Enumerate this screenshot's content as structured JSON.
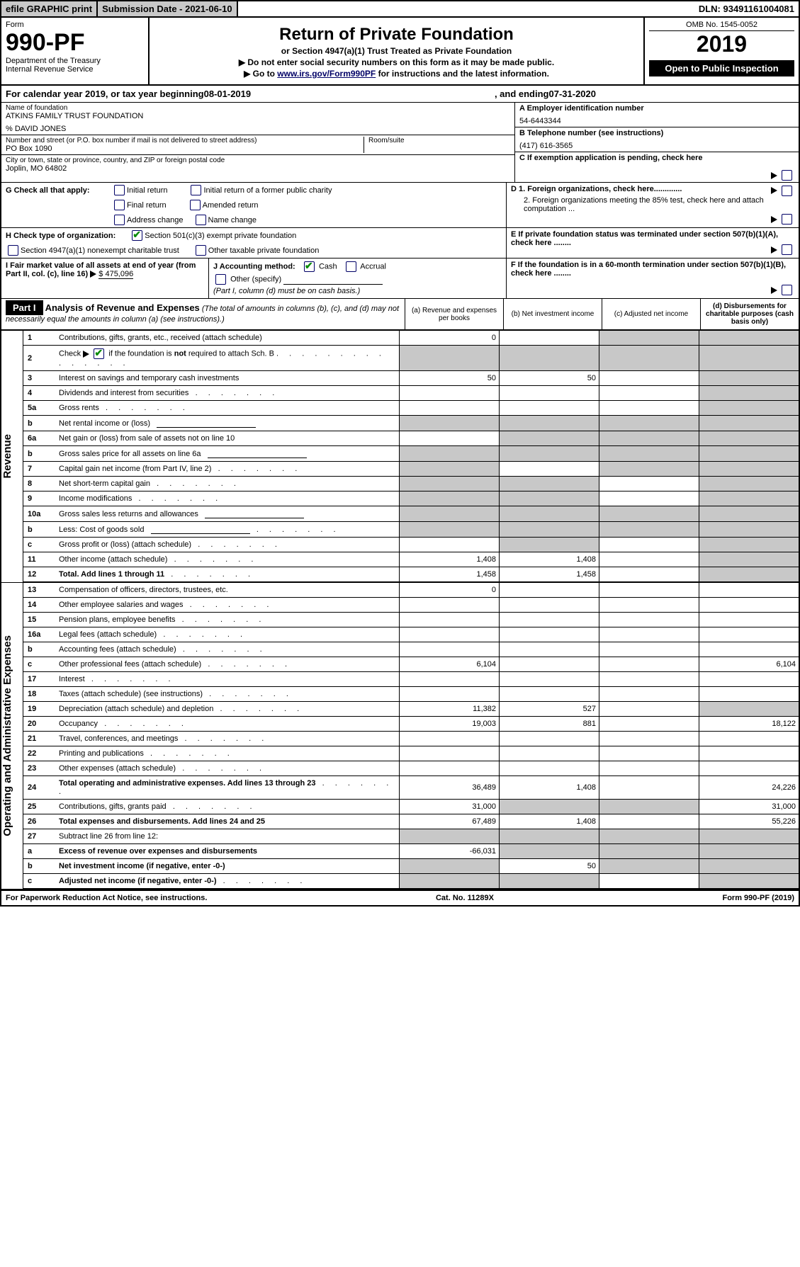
{
  "topbar": {
    "print": "efile GRAPHIC print",
    "submission": "Submission Date - 2021-06-10",
    "dln": "DLN: 93491161004081"
  },
  "header": {
    "form_label": "Form",
    "form_num": "990-PF",
    "dept": "Department of the Treasury",
    "irs": "Internal Revenue Service",
    "title": "Return of Private Foundation",
    "subtitle": "or Section 4947(a)(1) Trust Treated as Private Foundation",
    "warn1": "Do not enter social security numbers on this form as it may be made public.",
    "warn2_prefix": "Go to ",
    "warn2_link": "www.irs.gov/Form990PF",
    "warn2_suffix": " for instructions and the latest information.",
    "omb": "OMB No. 1545-0052",
    "year": "2019",
    "public": "Open to Public Inspection"
  },
  "calendar": {
    "text1": "For calendar year 2019, or tax year beginning ",
    "begin": "08-01-2019",
    "text2": ", and ending ",
    "end": "07-31-2020"
  },
  "identity": {
    "name_label": "Name of foundation",
    "name": "ATKINS FAMILY TRUST FOUNDATION",
    "care_of": "% DAVID JONES",
    "addr_label": "Number and street (or P.O. box number if mail is not delivered to street address)",
    "addr": "PO Box 1090",
    "room_label": "Room/suite",
    "city_label": "City or town, state or province, country, and ZIP or foreign postal code",
    "city": "Joplin, MO  64802",
    "ein_label": "A Employer identification number",
    "ein": "54-6443344",
    "phone_label": "B Telephone number (see instructions)",
    "phone": "(417) 616-3565",
    "c_label": "C If exemption application is pending, check here"
  },
  "sectionG": {
    "label": "G Check all that apply:",
    "opts": [
      "Initial return",
      "Initial return of a former public charity",
      "Final return",
      "Amended return",
      "Address change",
      "Name change"
    ]
  },
  "sectionH": {
    "label": "H Check type of organization:",
    "opt1": "Section 501(c)(3) exempt private foundation",
    "opt2": "Section 4947(a)(1) nonexempt charitable trust",
    "opt3": "Other taxable private foundation"
  },
  "sectionI": {
    "label": "I Fair market value of all assets at end of year (from Part II, col. (c), line 16)",
    "value": "$  475,096"
  },
  "sectionJ": {
    "label": "J Accounting method:",
    "opts": [
      "Cash",
      "Accrual"
    ],
    "other": "Other (specify)",
    "note": "(Part I, column (d) must be on cash basis.)"
  },
  "sectionD": {
    "d1": "D 1. Foreign organizations, check here.............",
    "d2": "2. Foreign organizations meeting the 85% test, check here and attach computation ..."
  },
  "sectionE": "E  If private foundation status was terminated under section 507(b)(1)(A), check here ........",
  "sectionF": "F  If the foundation is in a 60-month termination under section 507(b)(1)(B), check here ........",
  "part1": {
    "label": "Part I",
    "title": "Analysis of Revenue and Expenses",
    "note": "(The total of amounts in columns (b), (c), and (d) may not necessarily equal the amounts in column (a) (see instructions).)",
    "col_a": "(a) Revenue and expenses per books",
    "col_b": "(b) Net investment income",
    "col_c": "(c) Adjusted net income",
    "col_d": "(d) Disbursements for charitable purposes (cash basis only)"
  },
  "rows": [
    {
      "n": "1",
      "label": "Contributions, gifts, grants, etc., received (attach schedule)",
      "a": "0",
      "b": "",
      "c": "shade",
      "d": "shade"
    },
    {
      "n": "2",
      "label": "Check ▶ ☑ if the foundation is not required to attach Sch. B",
      "labelHtml": true,
      "a": "shade",
      "b": "shade",
      "c": "shade",
      "d": "shade"
    },
    {
      "n": "3",
      "label": "Interest on savings and temporary cash investments",
      "a": "50",
      "b": "50",
      "c": "",
      "d": "shade"
    },
    {
      "n": "4",
      "label": "Dividends and interest from securities",
      "dots": true,
      "a": "",
      "b": "",
      "c": "",
      "d": "shade"
    },
    {
      "n": "5a",
      "label": "Gross rents",
      "dots": true,
      "a": "",
      "b": "",
      "c": "",
      "d": "shade"
    },
    {
      "n": "b",
      "label": "Net rental income or (loss)",
      "underline": true,
      "a": "shade",
      "b": "shade",
      "c": "shade",
      "d": "shade"
    },
    {
      "n": "6a",
      "label": "Net gain or (loss) from sale of assets not on line 10",
      "a": "",
      "b": "shade",
      "c": "shade",
      "d": "shade"
    },
    {
      "n": "b",
      "label": "Gross sales price for all assets on line 6a",
      "underline": true,
      "a": "shade",
      "b": "shade",
      "c": "shade",
      "d": "shade"
    },
    {
      "n": "7",
      "label": "Capital gain net income (from Part IV, line 2)",
      "dots": true,
      "a": "shade",
      "b": "",
      "c": "shade",
      "d": "shade"
    },
    {
      "n": "8",
      "label": "Net short-term capital gain",
      "dots": true,
      "a": "shade",
      "b": "shade",
      "c": "",
      "d": "shade"
    },
    {
      "n": "9",
      "label": "Income modifications",
      "dots": true,
      "a": "shade",
      "b": "shade",
      "c": "",
      "d": "shade"
    },
    {
      "n": "10a",
      "label": "Gross sales less returns and allowances",
      "underline": true,
      "a": "shade",
      "b": "shade",
      "c": "shade",
      "d": "shade"
    },
    {
      "n": "b",
      "label": "Less: Cost of goods sold",
      "dots": true,
      "underline": true,
      "a": "shade",
      "b": "shade",
      "c": "shade",
      "d": "shade"
    },
    {
      "n": "c",
      "label": "Gross profit or (loss) (attach schedule)",
      "dots": true,
      "a": "",
      "b": "shade",
      "c": "",
      "d": "shade"
    },
    {
      "n": "11",
      "label": "Other income (attach schedule)",
      "dots": true,
      "a": "1,408",
      "b": "1,408",
      "c": "",
      "d": "shade"
    },
    {
      "n": "12",
      "label": "Total. Add lines 1 through 11",
      "bold": true,
      "dots": true,
      "a": "1,458",
      "b": "1,458",
      "c": "",
      "d": "shade"
    },
    {
      "n": "13",
      "label": "Compensation of officers, directors, trustees, etc.",
      "a": "0",
      "b": "",
      "c": "",
      "d": ""
    },
    {
      "n": "14",
      "label": "Other employee salaries and wages",
      "dots": true,
      "a": "",
      "b": "",
      "c": "",
      "d": ""
    },
    {
      "n": "15",
      "label": "Pension plans, employee benefits",
      "dots": true,
      "a": "",
      "b": "",
      "c": "",
      "d": ""
    },
    {
      "n": "16a",
      "label": "Legal fees (attach schedule)",
      "dots": true,
      "a": "",
      "b": "",
      "c": "",
      "d": ""
    },
    {
      "n": "b",
      "label": "Accounting fees (attach schedule)",
      "dots": true,
      "a": "",
      "b": "",
      "c": "",
      "d": ""
    },
    {
      "n": "c",
      "label": "Other professional fees (attach schedule)",
      "dots": true,
      "a": "6,104",
      "b": "",
      "c": "",
      "d": "6,104"
    },
    {
      "n": "17",
      "label": "Interest",
      "dots": true,
      "a": "",
      "b": "",
      "c": "",
      "d": ""
    },
    {
      "n": "18",
      "label": "Taxes (attach schedule) (see instructions)",
      "dots": true,
      "a": "",
      "b": "",
      "c": "",
      "d": ""
    },
    {
      "n": "19",
      "label": "Depreciation (attach schedule) and depletion",
      "dots": true,
      "a": "11,382",
      "b": "527",
      "c": "",
      "d": "shade"
    },
    {
      "n": "20",
      "label": "Occupancy",
      "dots": true,
      "a": "19,003",
      "b": "881",
      "c": "",
      "d": "18,122"
    },
    {
      "n": "21",
      "label": "Travel, conferences, and meetings",
      "dots": true,
      "a": "",
      "b": "",
      "c": "",
      "d": ""
    },
    {
      "n": "22",
      "label": "Printing and publications",
      "dots": true,
      "a": "",
      "b": "",
      "c": "",
      "d": ""
    },
    {
      "n": "23",
      "label": "Other expenses (attach schedule)",
      "dots": true,
      "a": "",
      "b": "",
      "c": "",
      "d": ""
    },
    {
      "n": "24",
      "label": "Total operating and administrative expenses. Add lines 13 through 23",
      "bold": true,
      "dots": true,
      "a": "36,489",
      "b": "1,408",
      "c": "",
      "d": "24,226"
    },
    {
      "n": "25",
      "label": "Contributions, gifts, grants paid",
      "dots": true,
      "a": "31,000",
      "b": "shade",
      "c": "shade",
      "d": "31,000"
    },
    {
      "n": "26",
      "label": "Total expenses and disbursements. Add lines 24 and 25",
      "bold": true,
      "a": "67,489",
      "b": "1,408",
      "c": "",
      "d": "55,226"
    },
    {
      "n": "27",
      "label": "Subtract line 26 from line 12:",
      "a": "shade",
      "b": "shade",
      "c": "shade",
      "d": "shade"
    },
    {
      "n": "a",
      "label": "Excess of revenue over expenses and disbursements",
      "bold": true,
      "a": "-66,031",
      "b": "shade",
      "c": "shade",
      "d": "shade"
    },
    {
      "n": "b",
      "label": "Net investment income (if negative, enter -0-)",
      "bold": true,
      "a": "shade",
      "b": "50",
      "c": "shade",
      "d": "shade"
    },
    {
      "n": "c",
      "label": "Adjusted net income (if negative, enter -0-)",
      "bold": true,
      "dots": true,
      "a": "shade",
      "b": "shade",
      "c": "",
      "d": "shade"
    }
  ],
  "vert": {
    "revenue": "Revenue",
    "expenses": "Operating and Administrative Expenses"
  },
  "footer": {
    "left": "For Paperwork Reduction Act Notice, see instructions.",
    "center": "Cat. No. 11289X",
    "right": "Form 990-PF (2019)"
  }
}
